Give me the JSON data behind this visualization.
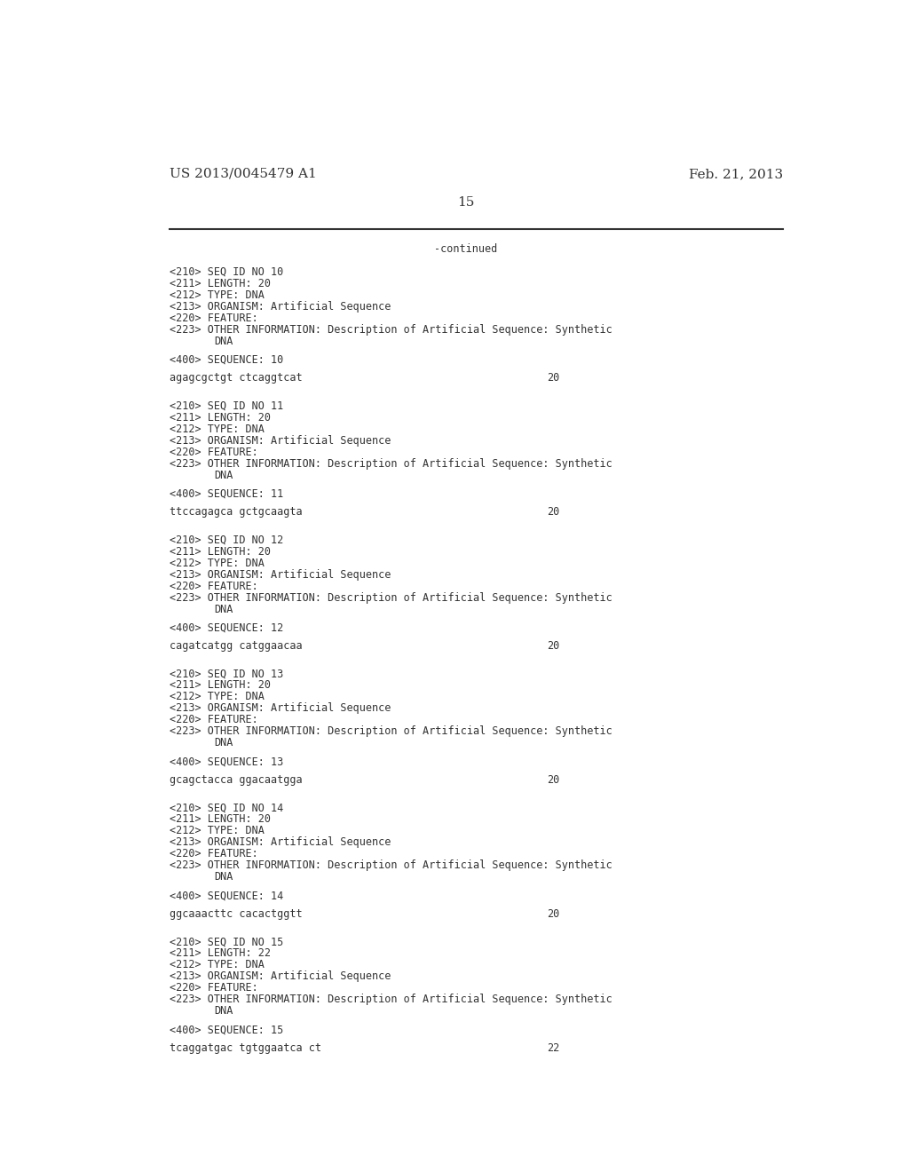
{
  "background_color": "#ffffff",
  "header_left": "US 2013/0045479 A1",
  "header_right": "Feb. 21, 2013",
  "page_number": "15",
  "continued_label": "-continued",
  "line_color": "#333333",
  "text_color": "#333333",
  "font_size_header": 11,
  "font_size_body": 8.5,
  "font_size_page": 11,
  "content": [
    {
      "seq_id": "10",
      "length": "20",
      "seq_type": "DNA",
      "organism": "Artificial Sequence",
      "sequence_num": "10",
      "sequence": "agagcgctgt ctcaggtcat",
      "seq_length_num": "20"
    },
    {
      "seq_id": "11",
      "length": "20",
      "seq_type": "DNA",
      "organism": "Artificial Sequence",
      "sequence_num": "11",
      "sequence": "ttccagagca gctgcaagta",
      "seq_length_num": "20"
    },
    {
      "seq_id": "12",
      "length": "20",
      "seq_type": "DNA",
      "organism": "Artificial Sequence",
      "sequence_num": "12",
      "sequence": "cagatcatgg catggaacaa",
      "seq_length_num": "20"
    },
    {
      "seq_id": "13",
      "length": "20",
      "seq_type": "DNA",
      "organism": "Artificial Sequence",
      "sequence_num": "13",
      "sequence": "gcagctacca ggacaatgga",
      "seq_length_num": "20"
    },
    {
      "seq_id": "14",
      "length": "20",
      "seq_type": "DNA",
      "organism": "Artificial Sequence",
      "sequence_num": "14",
      "sequence": "ggcaaacttc cacactggtt",
      "seq_length_num": "20"
    },
    {
      "seq_id": "15",
      "length": "22",
      "seq_type": "DNA",
      "organism": "Artificial Sequence",
      "sequence_num": "15",
      "sequence": "tcaggatgac tgtggaatca ct",
      "seq_length_num": "22"
    }
  ]
}
